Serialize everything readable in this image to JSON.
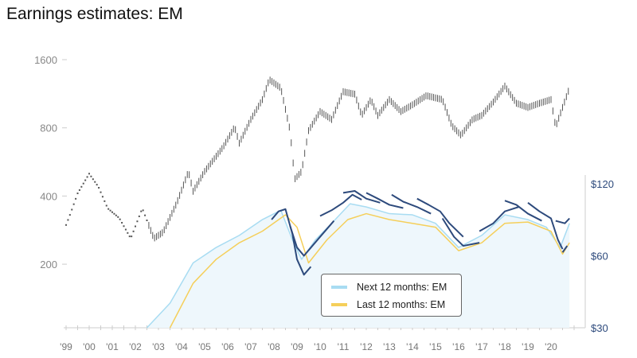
{
  "title": "Earnings estimates: EM",
  "colors": {
    "index": "#555555",
    "next12": "#a8dcf2",
    "last12": "#f5cf5a",
    "estimates": "#2d4a7c",
    "right_axis": "#2d4a7c"
  },
  "chart_data": {
    "type": "line",
    "title": "Earnings estimates: EM",
    "x_tick_labels": [
      "'99",
      "'00",
      "'01",
      "'02",
      "'03",
      "'04",
      "'05",
      "'06",
      "'07",
      "'08",
      "'09",
      "'10",
      "'11",
      "'12",
      "'13",
      "'14",
      "'15",
      "'16",
      "'17",
      "'18",
      "'19",
      "'20"
    ],
    "x_tick_years": [
      1999,
      2000,
      2001,
      2002,
      2003,
      2004,
      2005,
      2006,
      2007,
      2008,
      2009,
      2010,
      2011,
      2012,
      2013,
      2014,
      2015,
      2016,
      2017,
      2018,
      2019,
      2020
    ],
    "left_axis": {
      "scale": "log",
      "ticks": [
        200,
        400,
        800,
        1600
      ],
      "tick_labels": [
        "200",
        "400",
        "800",
        "1600"
      ]
    },
    "right_axis": {
      "scale": "log",
      "ticks": [
        30,
        60,
        120
      ],
      "tick_labels": [
        "$30",
        "$60",
        "$120"
      ]
    },
    "legend_position": "bottom-center",
    "grid": false,
    "series": [
      {
        "key": "index",
        "axis": "left",
        "style": "ohlc-bars",
        "points": [
          [
            1999.0,
            298
          ],
          [
            1999.2,
            337
          ],
          [
            1999.5,
            411
          ],
          [
            2000.0,
            502
          ],
          [
            2000.4,
            439
          ],
          [
            2000.8,
            353
          ],
          [
            2001.3,
            320
          ],
          [
            2001.8,
            260
          ],
          [
            2002.3,
            353
          ],
          [
            2002.8,
            260
          ],
          [
            2003.2,
            277
          ],
          [
            2003.8,
            374
          ],
          [
            2004.3,
            514
          ],
          [
            2004.5,
            420
          ],
          [
            2005.0,
            514
          ],
          [
            2005.8,
            658
          ],
          [
            2006.3,
            808
          ],
          [
            2006.5,
            685
          ],
          [
            2007.0,
            872
          ],
          [
            2007.5,
            1067
          ],
          [
            2007.8,
            1308
          ],
          [
            2008.3,
            1200
          ],
          [
            2008.7,
            778
          ],
          [
            2008.9,
            475
          ],
          [
            2009.2,
            514
          ],
          [
            2009.5,
            778
          ],
          [
            2010.0,
            945
          ],
          [
            2010.5,
            872
          ],
          [
            2011.0,
            1156
          ],
          [
            2011.5,
            1128
          ],
          [
            2011.8,
            908
          ],
          [
            2012.2,
            1067
          ],
          [
            2012.5,
            908
          ],
          [
            2013.0,
            1067
          ],
          [
            2013.5,
            945
          ],
          [
            2014.0,
            1012
          ],
          [
            2014.6,
            1111
          ],
          [
            2015.3,
            1067
          ],
          [
            2015.7,
            820
          ],
          [
            2016.1,
            742
          ],
          [
            2016.6,
            872
          ],
          [
            2017.0,
            908
          ],
          [
            2017.5,
            1041
          ],
          [
            2018.0,
            1224
          ],
          [
            2018.5,
            1028
          ],
          [
            2019.0,
            985
          ],
          [
            2019.5,
            1028
          ],
          [
            2020.0,
            1067
          ],
          [
            2020.2,
            808
          ],
          [
            2020.5,
            985
          ],
          [
            2020.8,
            1200
          ]
        ]
      },
      {
        "key": "next12",
        "name": "Next 12 months: EM",
        "axis": "right",
        "points": [
          [
            2002.5,
            30
          ],
          [
            2003.5,
            38
          ],
          [
            2004.5,
            56
          ],
          [
            2005.5,
            65
          ],
          [
            2006.5,
            73
          ],
          [
            2007.5,
            85
          ],
          [
            2008.3,
            93
          ],
          [
            2008.8,
            70
          ],
          [
            2009.2,
            58
          ],
          [
            2009.8,
            70
          ],
          [
            2010.5,
            82
          ],
          [
            2011.3,
            99
          ],
          [
            2012.0,
            96
          ],
          [
            2013.0,
            90
          ],
          [
            2014.0,
            89
          ],
          [
            2015.0,
            82
          ],
          [
            2016.0,
            65
          ],
          [
            2017.0,
            73
          ],
          [
            2018.0,
            89
          ],
          [
            2019.0,
            85
          ],
          [
            2019.8,
            79
          ],
          [
            2020.4,
            65
          ],
          [
            2020.8,
            82
          ]
        ]
      },
      {
        "key": "last12",
        "name": "Last 12 months: EM",
        "axis": "right",
        "points": [
          [
            2003.5,
            30
          ],
          [
            2004.5,
            46
          ],
          [
            2005.5,
            58
          ],
          [
            2006.5,
            68
          ],
          [
            2007.5,
            76
          ],
          [
            2008.5,
            89
          ],
          [
            2009.0,
            79
          ],
          [
            2009.5,
            56
          ],
          [
            2010.3,
            70
          ],
          [
            2011.2,
            85
          ],
          [
            2012.0,
            90
          ],
          [
            2013.0,
            85
          ],
          [
            2014.0,
            82
          ],
          [
            2015.0,
            79
          ],
          [
            2016.0,
            63
          ],
          [
            2017.0,
            68
          ],
          [
            2018.0,
            82
          ],
          [
            2019.0,
            83
          ],
          [
            2020.0,
            76
          ],
          [
            2020.5,
            61
          ],
          [
            2020.8,
            68
          ]
        ]
      },
      {
        "key": "estimates",
        "axis": "right",
        "segments": [
          [
            [
              2007.9,
              85
            ],
            [
              2008.2,
              92
            ],
            [
              2008.5,
              94
            ],
            [
              2008.8,
              74
            ],
            [
              2009.0,
              58
            ],
            [
              2009.3,
              50
            ],
            [
              2009.6,
              54
            ]
          ],
          [
            [
              2008.7,
              80
            ],
            [
              2009.0,
              65
            ],
            [
              2009.3,
              60
            ],
            [
              2010.0,
              72
            ],
            [
              2010.6,
              84
            ]
          ],
          [
            [
              2010.0,
              88
            ],
            [
              2010.5,
              93
            ],
            [
              2011.0,
              100
            ],
            [
              2011.4,
              108
            ],
            [
              2011.8,
              103
            ]
          ],
          [
            [
              2011.0,
              110
            ],
            [
              2011.5,
              112
            ],
            [
              2012.0,
              104
            ],
            [
              2012.6,
              100
            ]
          ],
          [
            [
              2012.0,
              110
            ],
            [
              2012.5,
              104
            ],
            [
              2013.0,
              98
            ],
            [
              2013.6,
              95
            ]
          ],
          [
            [
              2013.1,
              108
            ],
            [
              2013.6,
              101
            ],
            [
              2014.2,
              96
            ],
            [
              2014.8,
              90
            ]
          ],
          [
            [
              2014.2,
              104
            ],
            [
              2014.7,
              98
            ],
            [
              2015.2,
              92
            ],
            [
              2015.6,
              82
            ],
            [
              2016.2,
              72
            ]
          ],
          [
            [
              2015.3,
              86
            ],
            [
              2015.8,
              72
            ],
            [
              2016.2,
              66
            ],
            [
              2016.9,
              68
            ]
          ],
          [
            [
              2016.9,
              76
            ],
            [
              2017.5,
              82
            ],
            [
              2018.0,
              92
            ],
            [
              2018.6,
              96
            ]
          ],
          [
            [
              2018.0,
              102
            ],
            [
              2018.5,
              98
            ],
            [
              2019.0,
              90
            ],
            [
              2019.6,
              84
            ]
          ],
          [
            [
              2019.0,
              100
            ],
            [
              2019.5,
              92
            ],
            [
              2020.0,
              86
            ],
            [
              2020.3,
              70
            ],
            [
              2020.5,
              64
            ]
          ],
          [
            [
              2020.5,
              62
            ],
            [
              2020.7,
              66
            ]
          ],
          [
            [
              2020.2,
              84
            ],
            [
              2020.6,
              82
            ],
            [
              2020.8,
              86
            ]
          ]
        ]
      }
    ]
  },
  "legend": [
    {
      "label": "Next 12 months: EM"
    },
    {
      "label": "Last 12 months: EM"
    }
  ]
}
